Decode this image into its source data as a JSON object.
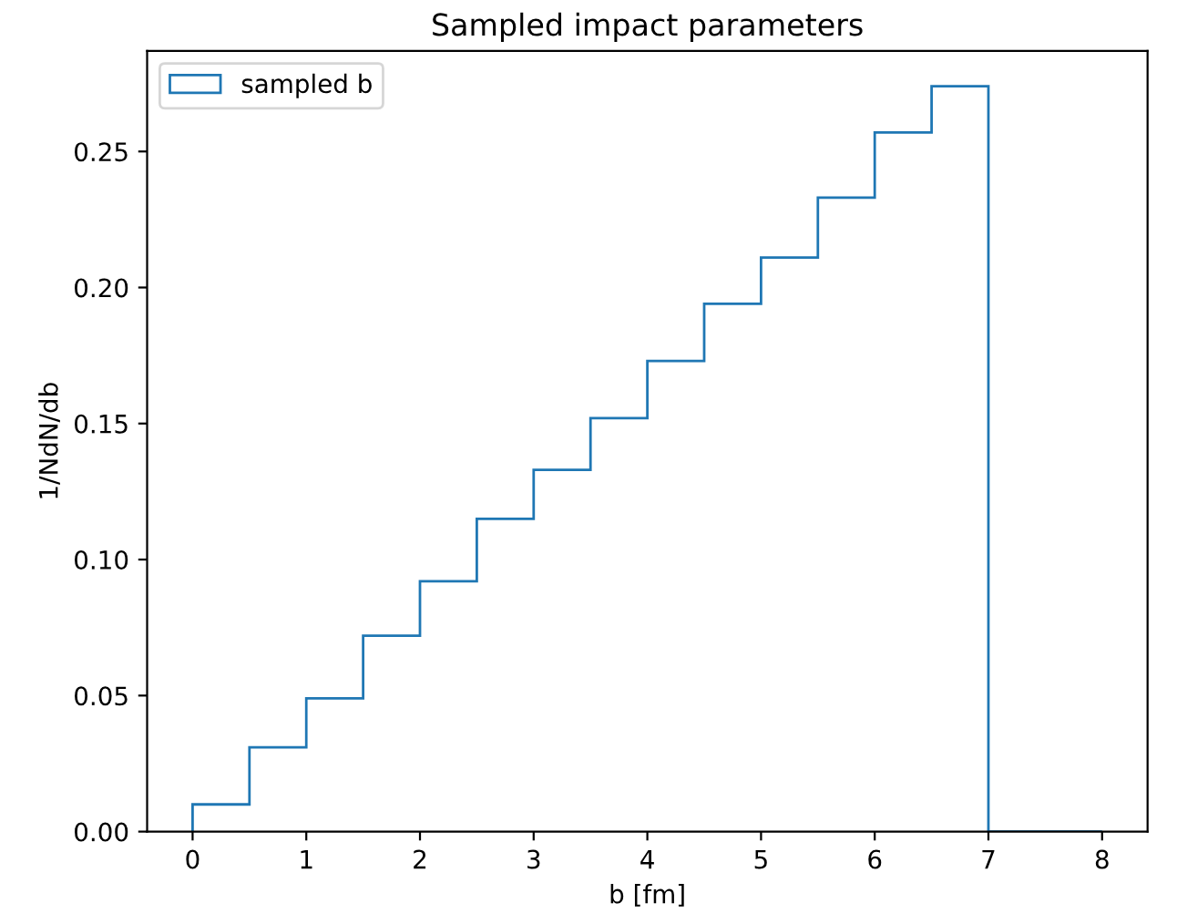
{
  "chart_data": {
    "type": "histogram",
    "title": "Sampled impact parameters",
    "xlabel": "b [fm]",
    "ylabel": "1/NdN/db",
    "bins": [
      0,
      0.5,
      1,
      1.5,
      2,
      2.5,
      3,
      3.5,
      4,
      4.5,
      5,
      5.5,
      6,
      6.5,
      7,
      7.5,
      8
    ],
    "series": [
      {
        "name": "sampled b",
        "color": "#1f77b4",
        "values": [
          0.01,
          0.031,
          0.049,
          0.072,
          0.092,
          0.115,
          0.133,
          0.152,
          0.173,
          0.194,
          0.211,
          0.233,
          0.257,
          0.274,
          0,
          0
        ]
      }
    ],
    "xlim": [
      -0.4,
      8.4
    ],
    "ylim": [
      0,
      0.287
    ],
    "xticks": [
      0,
      1,
      2,
      3,
      4,
      5,
      6,
      7,
      8
    ],
    "yticks": [
      {
        "value": 0,
        "label": "0.00"
      },
      {
        "value": 0.05,
        "label": "0.05"
      },
      {
        "value": 0.1,
        "label": "0.10"
      },
      {
        "value": 0.15,
        "label": "0.15"
      },
      {
        "value": 0.2,
        "label": "0.20"
      },
      {
        "value": 0.25,
        "label": "0.25"
      }
    ],
    "legend": "top left",
    "grid": false
  }
}
